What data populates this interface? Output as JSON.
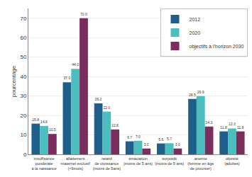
{
  "chart_data": {
    "type": "bar",
    "categories": [
      "insuffisance\npondérale\nà la naissance",
      "allaitement\nmaternel exclusif\n(<6mois)",
      "retard\nde croissance\n(moins de 5ans)",
      "émaciation\n(moins de 5 ans)",
      "surpoids\n(moins de 5 ans)",
      "anémie\n(femme en âge\nde procréer)",
      "obésité\n(adultes)"
    ],
    "series": [
      {
        "name": "2012",
        "color": "#1f5f8b",
        "values": [
          15.8,
          37.0,
          26.2,
          6.7,
          5.6,
          28.5,
          11.8
        ],
        "value_labels": [
          "15.8",
          "37.0",
          "26.2",
          "6.7",
          "5.6",
          "28.5",
          "11.8"
        ]
      },
      {
        "name": "2020",
        "color": "#4bbfbf",
        "values": [
          14.6,
          44.0,
          22.0,
          7.0,
          5.7,
          29.9,
          13.3
        ],
        "value_labels": [
          "14.6",
          "44.0",
          "22.0",
          "7.0",
          "5.7",
          "29.9",
          "13.3"
        ]
      },
      {
        "name": "objectifs à l'horizon 2030",
        "color": "#7b2d5e",
        "values": [
          10.5,
          70.0,
          12.8,
          3.0,
          3.0,
          14.3,
          11.8
        ],
        "value_labels": [
          "10.5",
          "70.0",
          "12.8",
          "3.0",
          "3.0",
          "14.3",
          "11.8"
        ]
      }
    ],
    "ylabel": "pourcentage",
    "ylim": [
      0,
      75
    ],
    "yticks": [
      0,
      10,
      20,
      30,
      40,
      50,
      60,
      70
    ],
    "grid": true,
    "legend": "upper right",
    "data_labels": true
  }
}
